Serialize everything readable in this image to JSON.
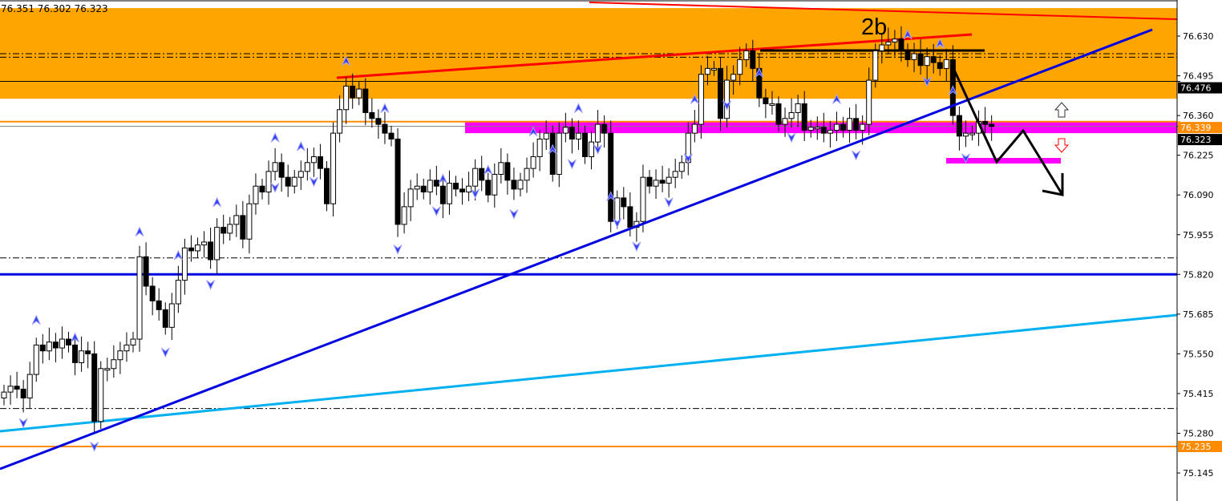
{
  "header": {
    "ohlc_readout": "76.351 76.302 76.323"
  },
  "annotation": {
    "pattern_label": "2b"
  },
  "colors": {
    "resistance_zone": "#FFA500",
    "trendline_red": "#FF0000",
    "trendline_blue": "#0000E0",
    "trendline_cyan": "#00B0F0",
    "support_band": "#FF00FF",
    "level_orange": "#FF8C00",
    "bull_candle": "#FFFFFF",
    "bear_candle": "#000000"
  },
  "chart_data": {
    "type": "candlestick",
    "title": "",
    "ylim": [
      75.1,
      76.74
    ],
    "y_ticks": [
      "76.630",
      "76.495",
      "76.360",
      "76.225",
      "76.090",
      "75.955",
      "75.820",
      "75.685",
      "75.550",
      "75.415",
      "75.280",
      "75.145"
    ],
    "price_tags": [
      {
        "label": "76.476",
        "value": 76.476,
        "style": "black"
      },
      {
        "label": "76.339",
        "value": 76.339,
        "style": "orange"
      },
      {
        "label": "76.323",
        "value": 76.323,
        "style": "black"
      },
      {
        "label": "75.235",
        "value": 75.235,
        "style": "orange"
      }
    ],
    "close": [
      75.42,
      75.44,
      75.43,
      75.4,
      75.48,
      75.58,
      75.56,
      75.59,
      75.57,
      75.6,
      75.58,
      75.52,
      75.56,
      75.55,
      75.32,
      75.5,
      75.5,
      75.53,
      75.56,
      75.58,
      75.6,
      75.88,
      75.78,
      75.73,
      75.7,
      75.64,
      75.72,
      75.8,
      75.91,
      75.9,
      75.92,
      75.93,
      75.87,
      75.98,
      75.96,
      75.99,
      76.02,
      75.94,
      76.06,
      76.12,
      76.1,
      76.17,
      76.2,
      76.15,
      76.12,
      76.15,
      76.17,
      76.2,
      76.22,
      76.18,
      76.06,
      76.3,
      76.38,
      76.46,
      76.42,
      76.45,
      76.37,
      76.35,
      76.33,
      76.3,
      76.28,
      75.99,
      76.05,
      76.11,
      76.12,
      76.1,
      76.14,
      76.12,
      76.06,
      76.13,
      76.11,
      76.1,
      76.12,
      76.18,
      76.14,
      76.09,
      76.16,
      76.2,
      76.14,
      76.11,
      76.14,
      76.18,
      76.22,
      76.28,
      76.3,
      76.16,
      76.3,
      76.32,
      76.28,
      76.3,
      76.22,
      76.27,
      76.33,
      76.3,
      76.0,
      76.08,
      76.05,
      75.98,
      76.0,
      76.15,
      76.12,
      76.14,
      76.13,
      76.15,
      76.17,
      76.2,
      76.3,
      76.33,
      76.5,
      76.52,
      76.52,
      76.35,
      76.48,
      76.5,
      76.55,
      76.58,
      76.52,
      76.42,
      76.4,
      76.4,
      76.33,
      76.35,
      76.37,
      76.4,
      76.31,
      76.32,
      76.32,
      76.3,
      76.31,
      76.33,
      76.31,
      76.35,
      76.31,
      76.33,
      76.48,
      76.58,
      76.6,
      76.61,
      76.62,
      76.58,
      76.55,
      76.57,
      76.53,
      76.56,
      76.54,
      76.52,
      76.55,
      76.36,
      76.29,
      76.3,
      76.3,
      76.34,
      76.33,
      76.323
    ],
    "fractals_up": [
      5,
      11,
      21,
      27,
      33,
      42,
      46,
      53,
      59,
      68,
      75,
      82,
      85,
      89,
      94,
      107,
      117,
      129,
      140,
      145,
      147
    ],
    "fractals_down": [
      3,
      14,
      25,
      32,
      42,
      48,
      61,
      67,
      73,
      79,
      88,
      92,
      95,
      98,
      103,
      106,
      112,
      122,
      132,
      143,
      149
    ],
    "zones": [
      {
        "name": "resistance-zone",
        "from": 76.417,
        "to": 76.725,
        "color": "#FFA500"
      },
      {
        "name": "support-band",
        "from": 76.3,
        "to": 76.339,
        "color": "#FF00FF"
      }
    ],
    "horizontal_levels": [
      {
        "value": 76.476,
        "style": "solid-thin",
        "color": "#000000"
      },
      {
        "value": 76.57,
        "style": "dashdot",
        "color": "#000000"
      },
      {
        "value": 76.558,
        "style": "dashdot",
        "color": "#000000"
      },
      {
        "value": 76.339,
        "style": "solid",
        "color": "#FF8C00"
      },
      {
        "value": 76.323,
        "style": "solid-thin",
        "color": "#808080"
      },
      {
        "value": 75.82,
        "style": "solid-thick",
        "color": "#0000E0"
      },
      {
        "value": 75.876,
        "style": "dashdot",
        "color": "#000000"
      },
      {
        "value": 75.364,
        "style": "dashdot",
        "color": "#000000"
      },
      {
        "value": 75.235,
        "style": "solid",
        "color": "#FF8C00"
      }
    ]
  }
}
